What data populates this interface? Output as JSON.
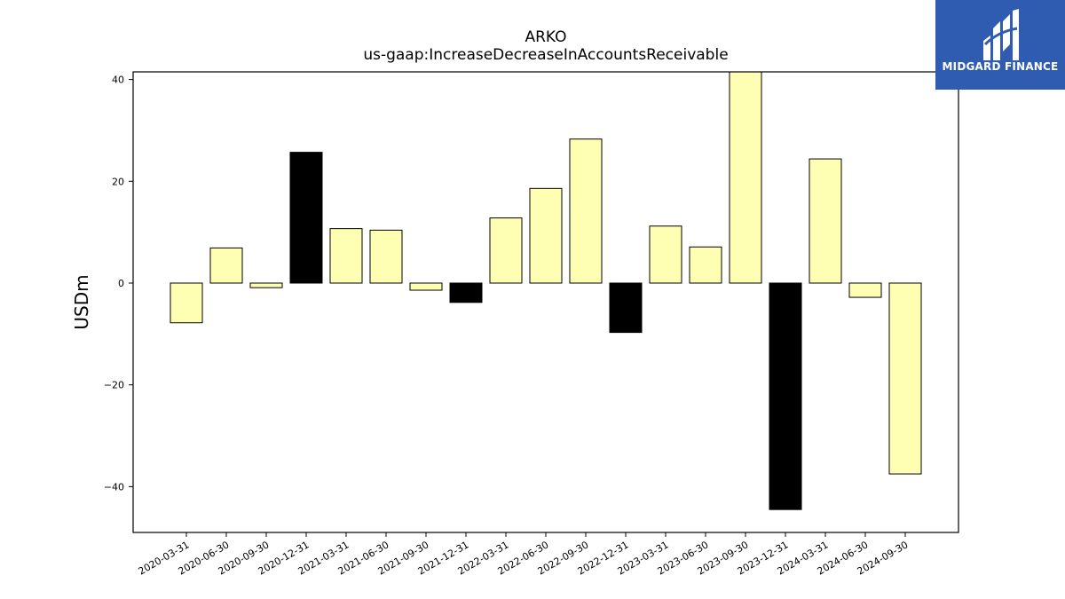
{
  "header": {
    "title": "ARKO",
    "subtitle": "us-gaap:IncreaseDecreaseInAccountsReceivable"
  },
  "logo": {
    "text": "MIDGARD FINANCE",
    "background": "#2f5cb0"
  },
  "colors": {
    "normal_bar": "#ffffb3",
    "highlight_bar": "#000000",
    "edge": "#000000"
  },
  "chart_data": {
    "type": "bar",
    "title": "ARKO",
    "subtitle": "us-gaap:IncreaseDecreaseInAccountsReceivable",
    "xlabel": "",
    "ylabel": "USDm",
    "ylim": [
      -49,
      41.5
    ],
    "yticks": [
      -40,
      -20,
      0,
      20,
      40
    ],
    "ytick_labels": [
      "−40",
      "−20",
      "0",
      "20",
      "40"
    ],
    "grid": false,
    "categories": [
      "2020-03-31",
      "2020-06-30",
      "2020-09-30",
      "2020-12-31",
      "2021-03-31",
      "2021-06-30",
      "2021-09-30",
      "2021-12-31",
      "2022-03-31",
      "2022-06-30",
      "2022-09-30",
      "2022-12-31",
      "2023-03-31",
      "2023-06-30",
      "2023-09-30",
      "2023-12-31",
      "2024-03-31",
      "2024-06-30",
      "2024-09-30"
    ],
    "values": [
      -7.8,
      6.9,
      -0.9,
      25.7,
      10.7,
      10.4,
      -1.4,
      -3.8,
      12.8,
      18.6,
      28.3,
      -9.7,
      11.2,
      7.1,
      42.0,
      -44.5,
      24.4,
      -2.8,
      -37.5
    ],
    "highlighted": [
      false,
      false,
      false,
      true,
      false,
      false,
      false,
      true,
      false,
      false,
      false,
      true,
      false,
      false,
      false,
      true,
      false,
      false,
      false
    ]
  }
}
